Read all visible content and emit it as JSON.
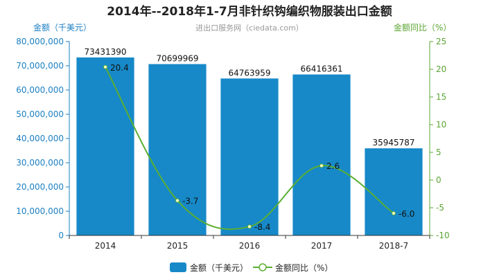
{
  "chart_data": {
    "type": "bar",
    "title": "2014年--2018年1-7月非针织钩编织物服装出口金额",
    "watermark": "进出口服务网（ciedata.com）",
    "ylabel_left": "金额（千美元）",
    "ylabel_right": "金额同比（%）",
    "categories": [
      "2014",
      "2015",
      "2016",
      "2017",
      "2018-7"
    ],
    "ylim_left": [
      0,
      80000000
    ],
    "yticks_left": [
      0,
      10000000,
      20000000,
      30000000,
      40000000,
      50000000,
      60000000,
      70000000,
      80000000
    ],
    "yticks_left_labels": [
      "0",
      "10,000,000",
      "20,000,000",
      "30,000,000",
      "40,000,000",
      "50,000,000",
      "60,000,000",
      "70,000,000",
      "80,000,000"
    ],
    "ylim_right": [
      -10,
      25
    ],
    "yticks_right": [
      -10,
      -5,
      0,
      5,
      10,
      15,
      20,
      25
    ],
    "yticks_right_labels": [
      "-10",
      "-5",
      "0",
      "5",
      "10",
      "15",
      "20",
      "25"
    ],
    "series": [
      {
        "name": "金额（千美元）",
        "type": "bar",
        "axis": "left",
        "values": [
          73431390,
          70699969,
          64763959,
          66416361,
          35945787
        ],
        "labels": [
          "73431390",
          "70699969",
          "64763959",
          "66416361",
          "35945787"
        ]
      },
      {
        "name": "金额同比（%）",
        "type": "line",
        "axis": "right",
        "values": [
          20.4,
          -3.7,
          -8.4,
          2.6,
          -6.0
        ],
        "labels": [
          "20.4",
          "-3.7",
          "-8.4",
          "2.6",
          "-6.0"
        ]
      }
    ],
    "grid": false,
    "legend": "bottom-center",
    "colors": {
      "bar": "#1789c8",
      "line": "#5aae33",
      "left_axis": "#1a7fc1",
      "right_axis": "#5aa532"
    }
  }
}
